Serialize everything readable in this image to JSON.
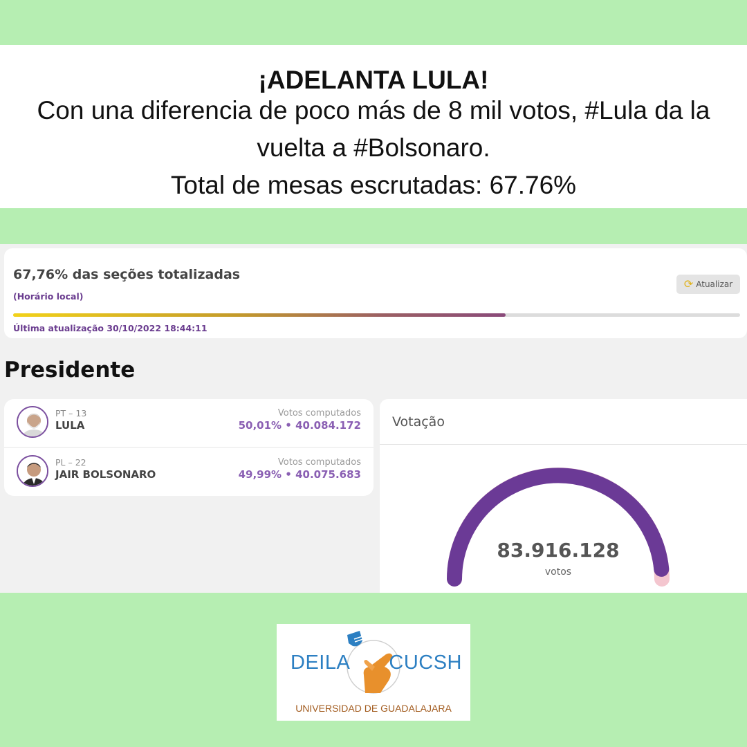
{
  "headline": {
    "title": "¡ADELANTA LULA!",
    "body": "Con una diferencia de poco más de 8 mil votos, #Lula da la vuelta a #Bolsonaro.",
    "total": "Total de mesas escrutadas: 67.76%"
  },
  "status": {
    "sections_text": "67,76% das seções totalizadas",
    "local_time_label": "(Horário local)",
    "refresh_label": "Atualizar",
    "refresh_icon": "refresh-icon",
    "progress_fraction": 0.6776,
    "last_update": "Última atualização 30/10/2022 18:44:11"
  },
  "section_title": "Presidente",
  "candidates": [
    {
      "party": "PT – 13",
      "name": "LULA",
      "votes_label": "Votos computados",
      "votes_value": "50,01%  •  40.084.172"
    },
    {
      "party": "PL – 22",
      "name": "JAIR BOLSONARO",
      "votes_label": "Votos computados",
      "votes_value": "49,99%  •  40.075.683"
    }
  ],
  "votacao": {
    "title": "Votação",
    "total": "83.916.128",
    "unit": "votos",
    "gauge_fraction": 0.97
  },
  "logo": {
    "left": "DEILA",
    "right": "CUCSH",
    "university": "UNIVERSIDAD DE GUADALAJARA"
  },
  "colors": {
    "background": "#b6eeb2",
    "accent_purple": "#6a3c8f",
    "gauge_purple": "#6b3a96",
    "brand_blue": "#2c7fc2",
    "brand_orange": "#e8902c"
  }
}
